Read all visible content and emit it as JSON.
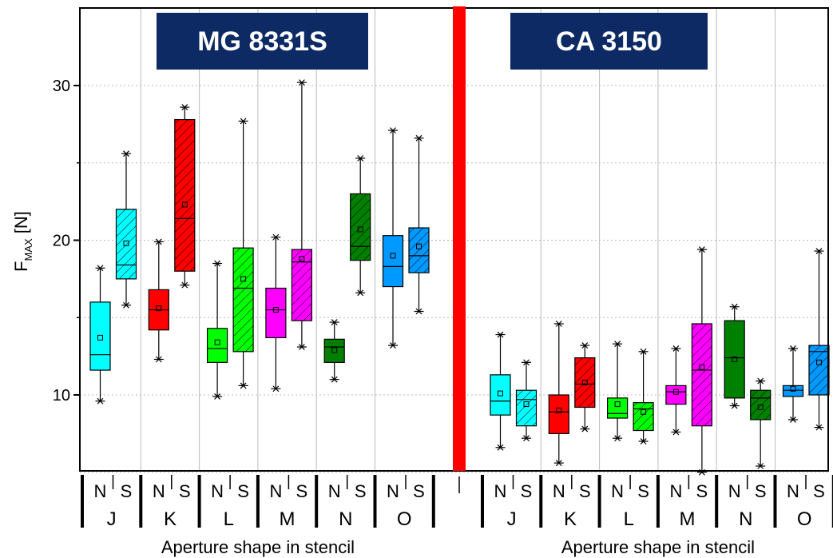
{
  "chart_data": {
    "type": "box",
    "ylabel_main": "F",
    "ylabel_sub": "MAX",
    "ylabel_unit": " [N]",
    "ylim": [
      5,
      35
    ],
    "yticks": [
      10,
      20,
      30
    ],
    "grid": "dotted horizontal",
    "separator_color": "#ff0000",
    "panels": [
      {
        "title": "MG 8331S",
        "xlabel": "Aperture shape in stencil",
        "groups": [
          {
            "label": "J",
            "color": "#00ffff",
            "boxes": [
              {
                "sub": "N",
                "hatch": false,
                "min": 9.6,
                "q1": 11.6,
                "median": 12.6,
                "mean": 13.7,
                "q3": 16.0,
                "max": 18.2
              },
              {
                "sub": "S",
                "hatch": true,
                "min": 15.8,
                "q1": 17.5,
                "median": 18.4,
                "mean": 19.8,
                "q3": 22.0,
                "max": 25.6
              }
            ]
          },
          {
            "label": "K",
            "color": "#ff0000",
            "boxes": [
              {
                "sub": "N",
                "hatch": false,
                "min": 12.3,
                "q1": 14.2,
                "median": 15.5,
                "mean": 15.6,
                "q3": 16.8,
                "max": 19.9
              },
              {
                "sub": "S",
                "hatch": true,
                "min": 17.1,
                "q1": 18.0,
                "median": 21.4,
                "mean": 22.3,
                "q3": 27.8,
                "max": 28.6
              }
            ]
          },
          {
            "label": "L",
            "color": "#00ff00",
            "boxes": [
              {
                "sub": "N",
                "hatch": false,
                "min": 9.9,
                "q1": 12.1,
                "median": 13.0,
                "mean": 13.4,
                "q3": 14.3,
                "max": 18.5
              },
              {
                "sub": "S",
                "hatch": true,
                "min": 10.6,
                "q1": 12.8,
                "median": 16.9,
                "mean": 17.5,
                "q3": 19.5,
                "max": 27.7
              }
            ]
          },
          {
            "label": "M",
            "color": "#ff00ff",
            "boxes": [
              {
                "sub": "N",
                "hatch": false,
                "min": 10.4,
                "q1": 13.7,
                "median": 15.5,
                "mean": 15.5,
                "q3": 16.9,
                "max": 20.2
              },
              {
                "sub": "S",
                "hatch": true,
                "min": 13.1,
                "q1": 14.8,
                "median": 18.6,
                "mean": 18.8,
                "q3": 19.4,
                "max": 30.2
              }
            ]
          },
          {
            "label": "N",
            "color": "#008000",
            "boxes": [
              {
                "sub": "N",
                "hatch": false,
                "min": 11.0,
                "q1": 12.1,
                "median": 13.1,
                "mean": 12.9,
                "q3": 13.6,
                "max": 14.7
              },
              {
                "sub": "S",
                "hatch": true,
                "min": 16.6,
                "q1": 18.7,
                "median": 19.6,
                "mean": 20.7,
                "q3": 23.0,
                "max": 25.3
              }
            ]
          },
          {
            "label": "O",
            "color": "#0099ff",
            "boxes": [
              {
                "sub": "N",
                "hatch": false,
                "min": 13.2,
                "q1": 17.0,
                "median": 18.3,
                "mean": 19.0,
                "q3": 20.3,
                "max": 27.1
              },
              {
                "sub": "S",
                "hatch": true,
                "min": 15.4,
                "q1": 17.9,
                "median": 19.0,
                "mean": 19.6,
                "q3": 20.8,
                "max": 26.6
              }
            ]
          }
        ]
      },
      {
        "title": "CA 3150",
        "xlabel": "Aperture shape in stencil",
        "groups": [
          {
            "label": "J",
            "color": "#00ffff",
            "boxes": [
              {
                "sub": "N",
                "hatch": false,
                "min": 6.6,
                "q1": 8.7,
                "median": 9.6,
                "mean": 10.1,
                "q3": 11.3,
                "max": 13.9
              },
              {
                "sub": "S",
                "hatch": true,
                "min": 7.2,
                "q1": 8.0,
                "median": 9.7,
                "mean": 9.4,
                "q3": 10.3,
                "max": 12.1
              }
            ]
          },
          {
            "label": "K",
            "color": "#ff0000",
            "boxes": [
              {
                "sub": "N",
                "hatch": false,
                "min": 5.6,
                "q1": 7.5,
                "median": 8.9,
                "mean": 9.0,
                "q3": 10.0,
                "max": 14.6
              },
              {
                "sub": "S",
                "hatch": true,
                "min": 7.8,
                "q1": 9.2,
                "median": 10.7,
                "mean": 10.8,
                "q3": 12.4,
                "max": 13.2
              }
            ]
          },
          {
            "label": "L",
            "color": "#00ff00",
            "boxes": [
              {
                "sub": "N",
                "hatch": false,
                "min": 7.2,
                "q1": 8.5,
                "median": 8.8,
                "mean": 9.4,
                "q3": 9.8,
                "max": 13.3
              },
              {
                "sub": "S",
                "hatch": true,
                "min": 7.0,
                "q1": 7.7,
                "median": 9.1,
                "mean": 8.9,
                "q3": 9.5,
                "max": 12.8
              }
            ]
          },
          {
            "label": "M",
            "color": "#ff00ff",
            "boxes": [
              {
                "sub": "N",
                "hatch": false,
                "min": 7.6,
                "q1": 9.4,
                "median": 10.2,
                "mean": 10.2,
                "q3": 10.6,
                "max": 13.0
              },
              {
                "sub": "S",
                "hatch": true,
                "min": 5.0,
                "q1": 8.0,
                "median": 11.6,
                "mean": 11.8,
                "q3": 14.6,
                "max": 19.4
              }
            ]
          },
          {
            "label": "N",
            "color": "#008000",
            "boxes": [
              {
                "sub": "N",
                "hatch": false,
                "min": 9.3,
                "q1": 9.8,
                "median": 12.4,
                "mean": 12.3,
                "q3": 14.8,
                "max": 15.7
              },
              {
                "sub": "S",
                "hatch": true,
                "min": 5.4,
                "q1": 8.4,
                "median": 9.8,
                "mean": 9.2,
                "q3": 10.3,
                "max": 10.9
              }
            ]
          },
          {
            "label": "O",
            "color": "#0099ff",
            "boxes": [
              {
                "sub": "N",
                "hatch": false,
                "min": 8.4,
                "q1": 9.9,
                "median": 10.3,
                "mean": 10.4,
                "q3": 10.6,
                "max": 13.0
              },
              {
                "sub": "S",
                "hatch": true,
                "min": 7.9,
                "q1": 10.0,
                "median": 12.8,
                "mean": 12.1,
                "q3": 13.2,
                "max": 19.3
              }
            ]
          }
        ]
      }
    ]
  }
}
